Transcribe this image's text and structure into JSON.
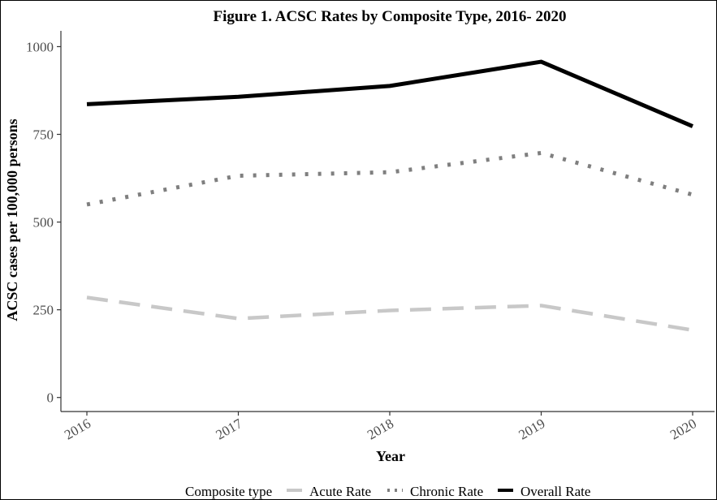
{
  "chart_data": {
    "type": "line",
    "title": "Figure 1. ACSC Rates by Composite Type, 2016- 2020",
    "xlabel": "Year",
    "ylabel": "ACSC cases per 100,000 persons",
    "x": [
      "2016",
      "2017",
      "2018",
      "2019",
      "2020"
    ],
    "ylim": [
      -40,
      1045
    ],
    "yticks": [
      0,
      250,
      500,
      750,
      1000
    ],
    "grid": false,
    "legend": {
      "title": "Composite type",
      "position": "bottom"
    },
    "series": [
      {
        "name": "Acute Rate",
        "values": [
          285,
          225,
          248,
          262,
          192
        ],
        "color": "#c8c8c8",
        "style": "dashed"
      },
      {
        "name": "Chronic Rate",
        "values": [
          550,
          632,
          642,
          697,
          578
        ],
        "color": "#7f7f7f",
        "style": "dotted"
      },
      {
        "name": "Overall Rate",
        "values": [
          836,
          857,
          888,
          957,
          773
        ],
        "color": "#000000",
        "style": "solid"
      }
    ]
  }
}
